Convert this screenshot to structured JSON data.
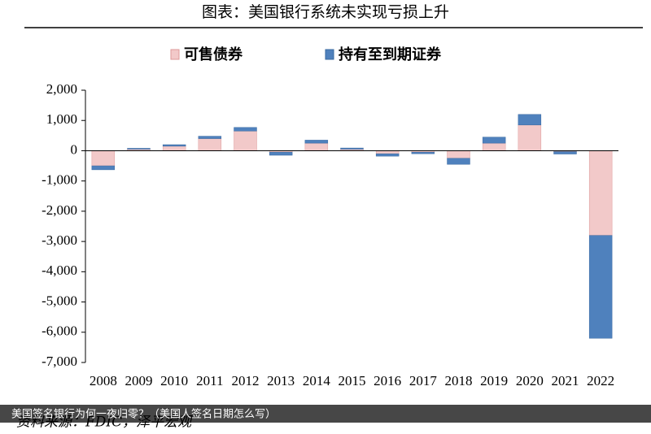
{
  "chart_data": {
    "type": "bar",
    "stacked": true,
    "title": "图表：美国银行系统未实现亏损上升",
    "source": "资料来源：FDIC，泽平宏观",
    "categories": [
      "2008",
      "2009",
      "2010",
      "2011",
      "2012",
      "2013",
      "2014",
      "2015",
      "2016",
      "2017",
      "2018",
      "2019",
      "2020",
      "2021",
      "2022"
    ],
    "series": [
      {
        "name": "可售债券",
        "color": "#f2c9c9",
        "values": [
          -500,
          50,
          150,
          400,
          650,
          -50,
          250,
          50,
          -100,
          -50,
          -250,
          250,
          850,
          -30,
          -2800
        ]
      },
      {
        "name": "持有至到期证券",
        "color": "#4f81bd",
        "values": [
          -130,
          30,
          50,
          80,
          120,
          -100,
          100,
          40,
          -80,
          -50,
          -200,
          200,
          350,
          -80,
          -3400
        ]
      }
    ],
    "ylim": [
      -7000,
      2000
    ],
    "yticks": [
      {
        "value": 2000,
        "label": "2,000"
      },
      {
        "value": 1000,
        "label": "1,000"
      },
      0,
      {
        "value": -1000,
        "label": "-1,000"
      },
      {
        "value": -2000,
        "label": "-2,000"
      },
      {
        "value": -3000,
        "label": "-3,000"
      },
      {
        "value": -4000,
        "label": "-4,000"
      },
      {
        "value": -5000,
        "label": "-5,000"
      },
      {
        "value": -6000,
        "label": "-6,000"
      },
      {
        "value": -7000,
        "label": "-7,000"
      }
    ],
    "legend": "top"
  },
  "overlay": {
    "caption": "美国签名银行为何一夜归零？（美国人签名日期怎么写）"
  }
}
